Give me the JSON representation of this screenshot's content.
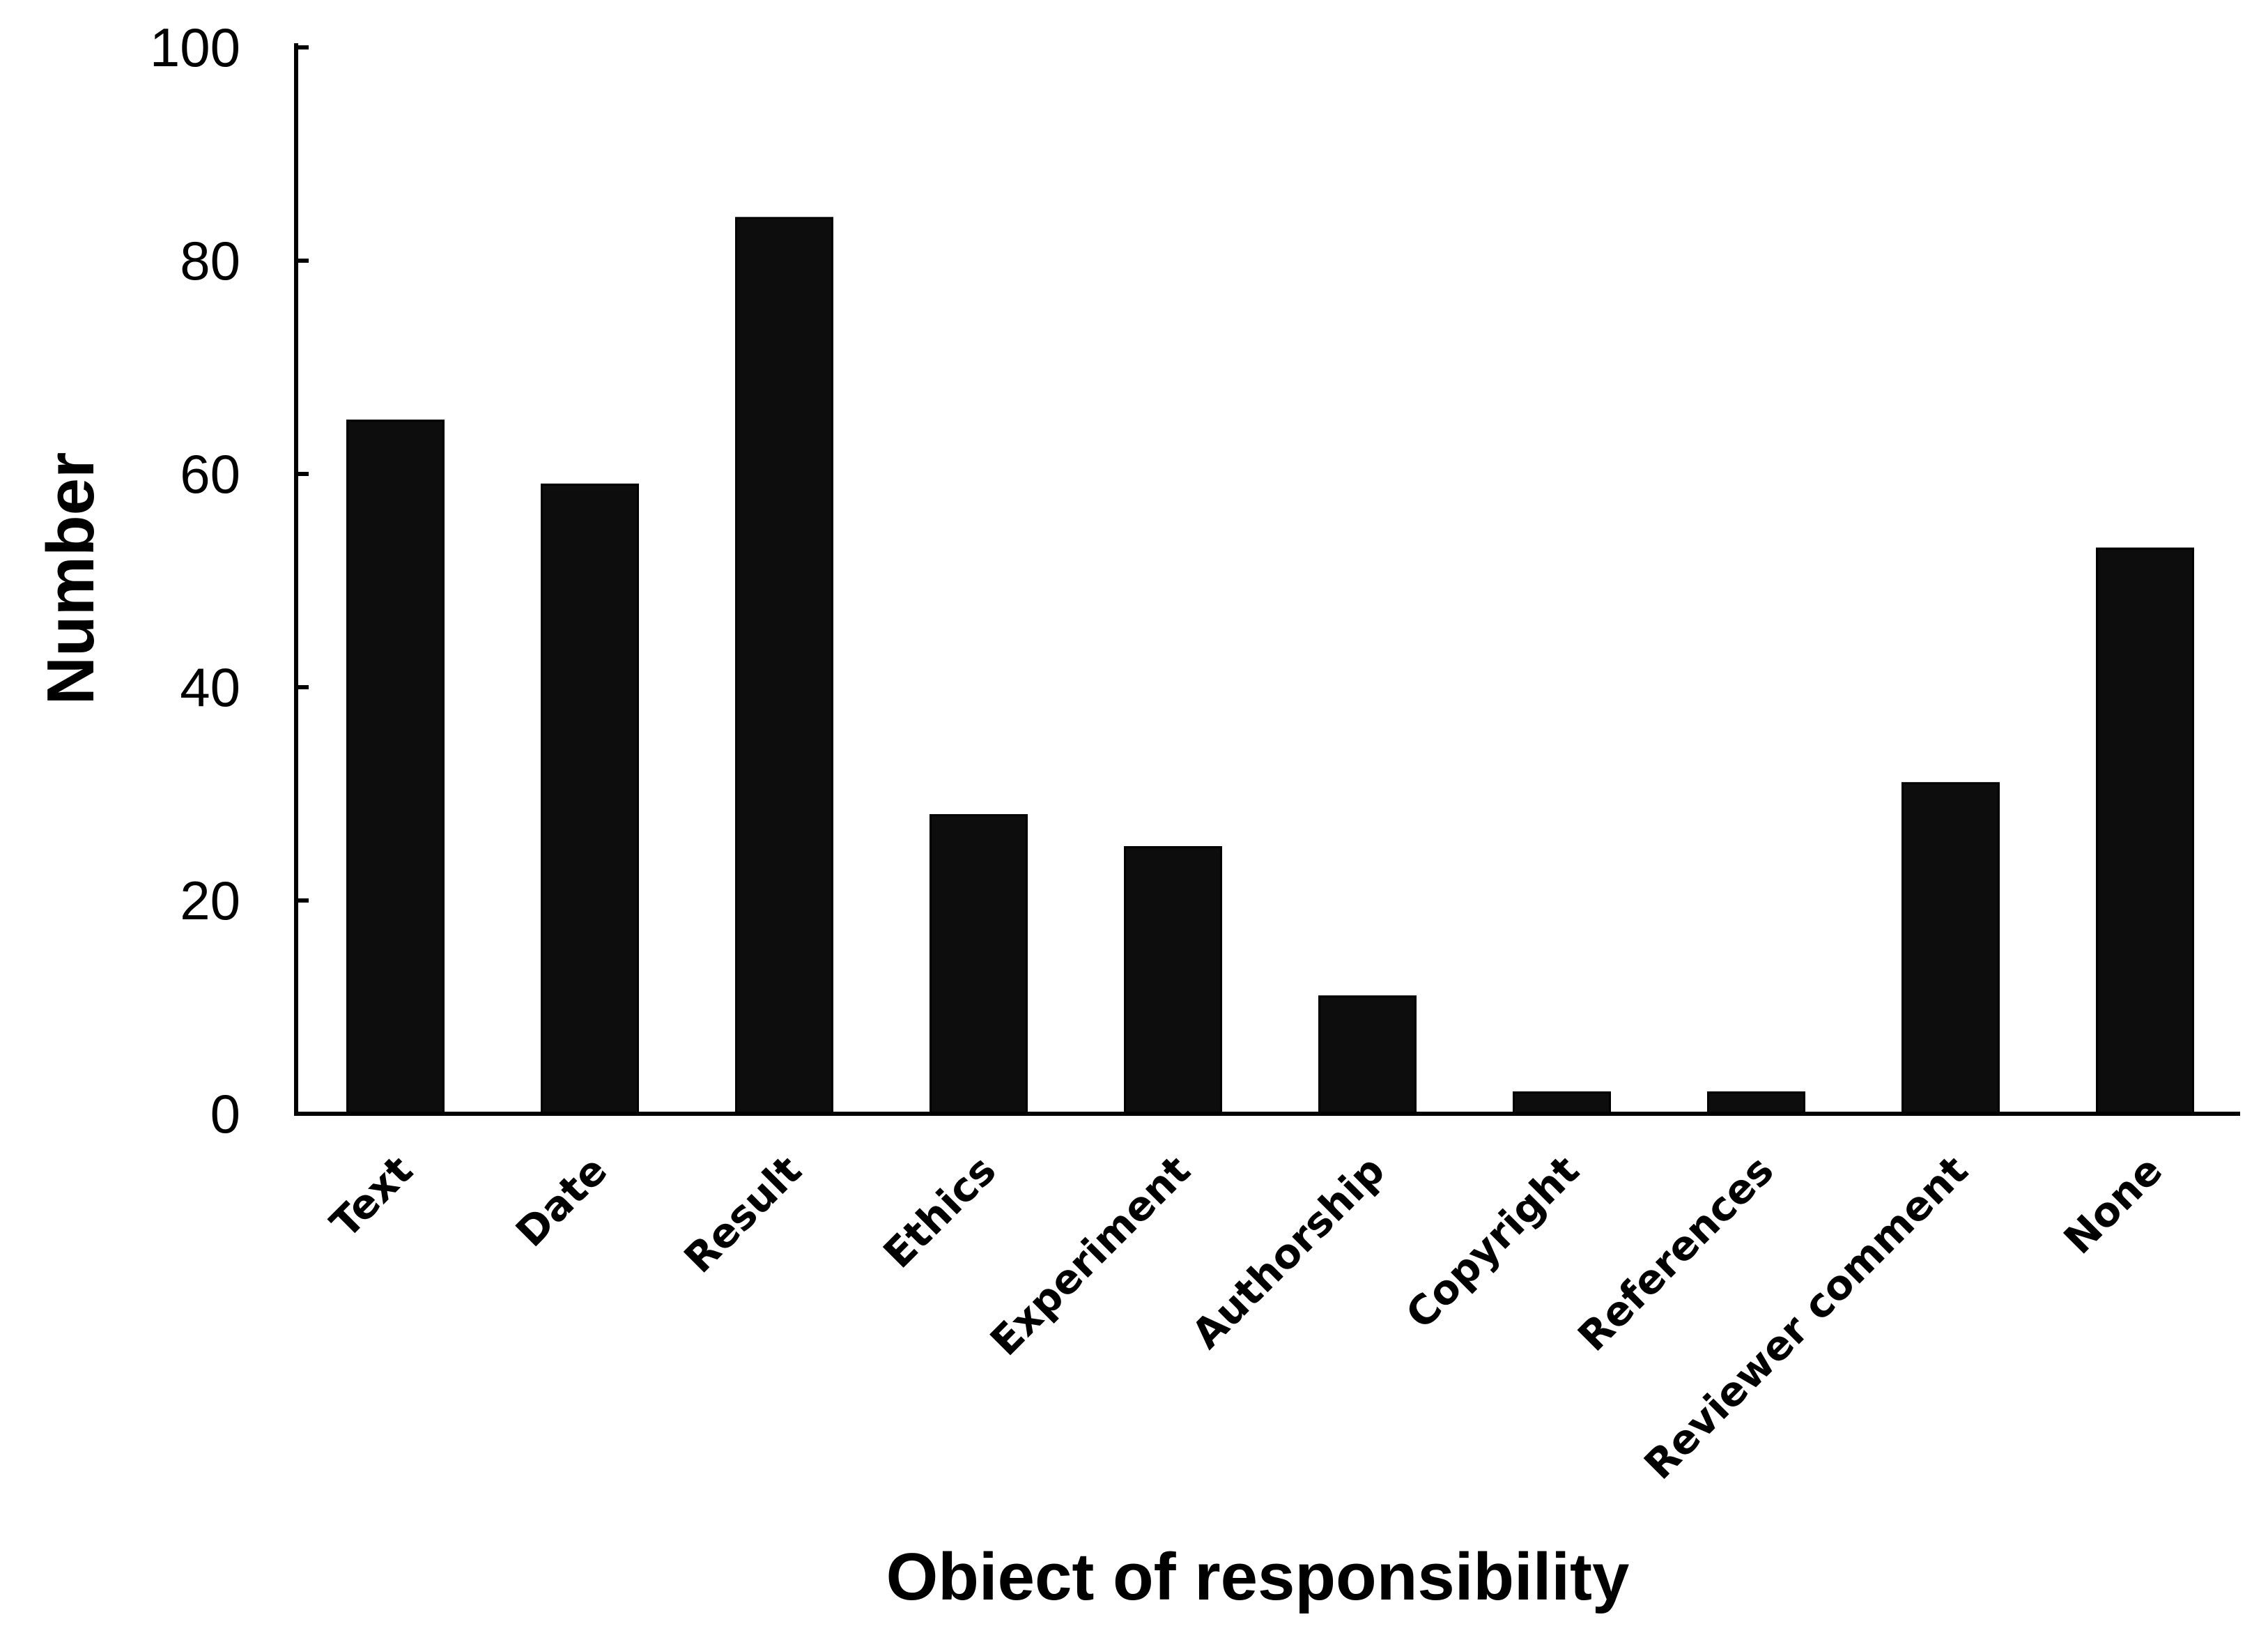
{
  "chart_data": {
    "type": "bar",
    "categories": [
      "Text",
      "Date",
      "Result",
      "Ethics",
      "Experiment",
      "Authorship",
      "Copyright",
      "References",
      "Reviewer comment",
      "None"
    ],
    "values": [
      65,
      59,
      84,
      28,
      25,
      11,
      2,
      2,
      31,
      53
    ],
    "xlabel": "Obiect of responsibility",
    "ylabel": "Number",
    "ylim": [
      0,
      100
    ],
    "yticks": [
      0,
      20,
      40,
      60,
      80,
      100
    ],
    "bar_color": "#0d0d0d",
    "grid": false,
    "legend": "none"
  }
}
